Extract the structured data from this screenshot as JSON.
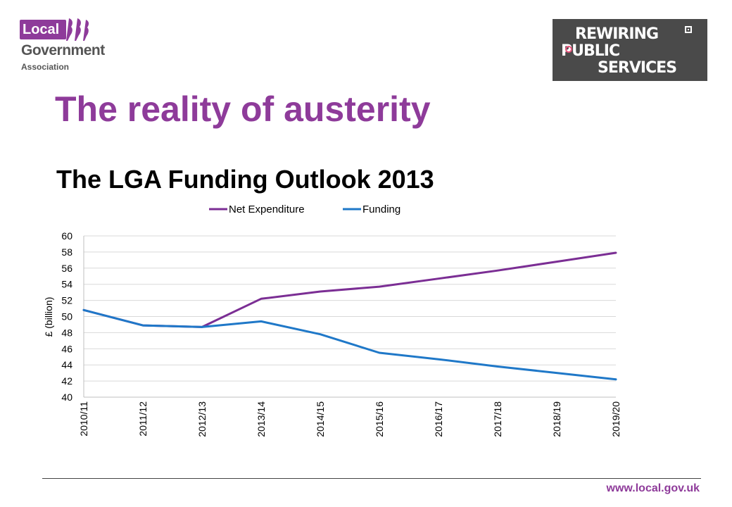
{
  "header": {
    "org_logo": {
      "line1": "Local",
      "line2": "Government",
      "line3": "Association",
      "icon": "faces-silhouette-icon",
      "color": "#8e3b9a"
    },
    "campaign_logo": {
      "line1": "REWIRING",
      "line2": "PUBLIC",
      "line3": "SERVICES",
      "icon": "power-icon",
      "background": "#4a4a4a"
    }
  },
  "slide": {
    "title": "The reality of austerity",
    "subtitle": "The LGA Funding Outlook 2013"
  },
  "chart_data": {
    "type": "line",
    "categories": [
      "2010/11",
      "2011/12",
      "2012/13",
      "2013/14",
      "2014/15",
      "2015/16",
      "2016/17",
      "2017/18",
      "2018/19",
      "2019/20"
    ],
    "series": [
      {
        "name": "Net Expenditure",
        "color": "#7b2e94",
        "values": [
          50.8,
          48.9,
          48.7,
          52.2,
          53.1,
          53.7,
          54.7,
          55.7,
          56.8,
          57.9
        ]
      },
      {
        "name": "Funding",
        "color": "#1f78c8",
        "values": [
          50.8,
          48.9,
          48.7,
          49.4,
          47.8,
          45.5,
          44.7,
          43.8,
          43.0,
          42.2
        ]
      }
    ],
    "ylabel": "£ (billion)",
    "xlabel": "",
    "ylim": [
      40,
      60
    ],
    "yticks": [
      40,
      42,
      44,
      46,
      48,
      50,
      52,
      54,
      56,
      58,
      60
    ],
    "grid": true,
    "legend_position": "top"
  },
  "footer": {
    "url": "www.local.gov.uk"
  }
}
